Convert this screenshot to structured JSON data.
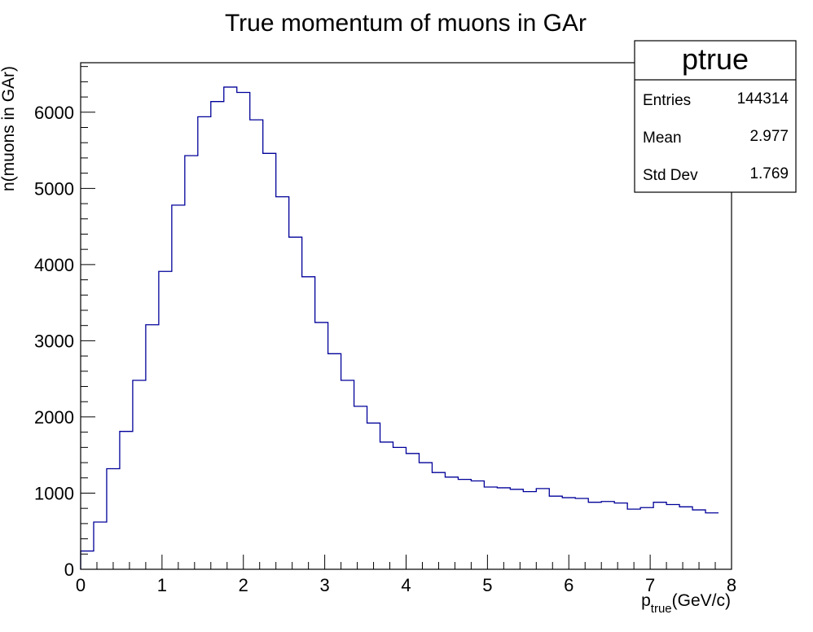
{
  "chart_data": {
    "type": "bar",
    "title": "True momentum of muons in GAr",
    "xlabel_main": "p",
    "xlabel_sub": "true",
    "xlabel_unit": "(GeV/c)",
    "ylabel": "n(muons in GAr)",
    "xlim": [
      0,
      8
    ],
    "ylim": [
      0,
      6650
    ],
    "x_ticks": [
      "0",
      "1",
      "2",
      "3",
      "4",
      "5",
      "6",
      "7",
      "8"
    ],
    "y_ticks": [
      "0",
      "1000",
      "2000",
      "3000",
      "4000",
      "5000",
      "6000"
    ],
    "bin_width": 0.16,
    "values": [
      240,
      620,
      1320,
      1810,
      2480,
      3210,
      3910,
      4780,
      5430,
      5940,
      6140,
      6330,
      6260,
      5900,
      5460,
      4890,
      4360,
      3840,
      3240,
      2830,
      2480,
      2140,
      1920,
      1670,
      1600,
      1520,
      1400,
      1270,
      1210,
      1180,
      1160,
      1080,
      1070,
      1050,
      1020,
      1060,
      960,
      940,
      930,
      880,
      890,
      870,
      790,
      810,
      880,
      850,
      820,
      780,
      740
    ],
    "line_color": "#000099",
    "stats": {
      "name": "ptrue",
      "rows": [
        {
          "label": "Entries",
          "value": "144314"
        },
        {
          "label": "Mean",
          "value": "2.977"
        },
        {
          "label": "Std Dev",
          "value": "1.769"
        }
      ]
    }
  }
}
